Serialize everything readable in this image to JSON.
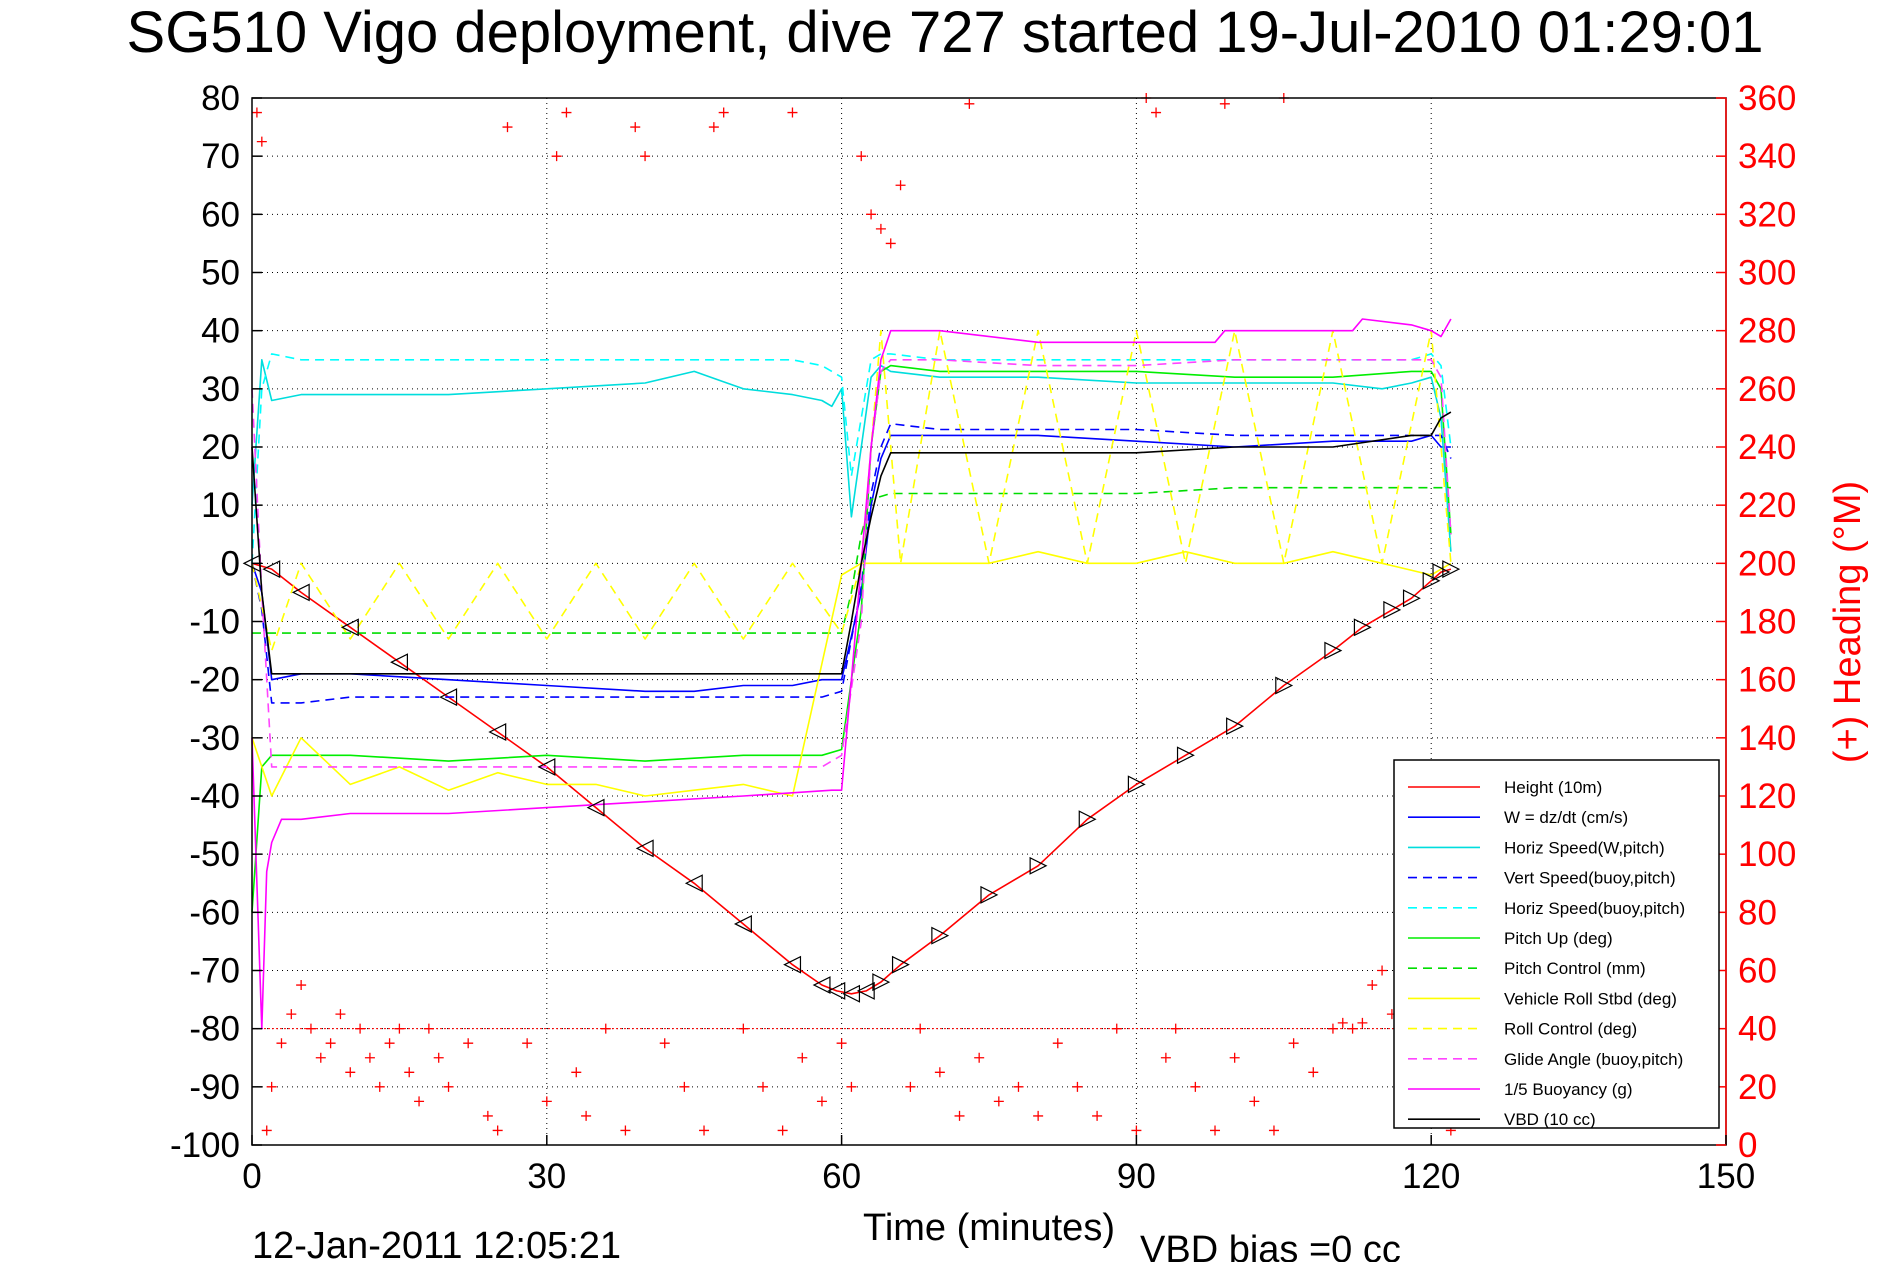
{
  "chart_data": {
    "type": "line",
    "title": "SG510 Vigo deployment, dive 727 started 19-Jul-2010 01:29:01",
    "xlabel": "Time (minutes)",
    "ylabel_right": "(+) Heading (°M)",
    "footer_left": "12-Jan-2011 12:05:21",
    "footer_right": "VBD bias =0 cc",
    "xlim": [
      0,
      150
    ],
    "ylim": [
      -100,
      80
    ],
    "ylim_right": [
      0,
      360
    ],
    "xticks": [
      "0",
      "30",
      "60",
      "90",
      "120",
      "150"
    ],
    "yticks": [
      "80",
      "70",
      "60",
      "50",
      "40",
      "30",
      "20",
      "10",
      "0",
      "-10",
      "-20",
      "-30",
      "-40",
      "-50",
      "-60",
      "-70",
      "-80",
      "-90",
      "-100"
    ],
    "yticks_right": [
      "360",
      "340",
      "320",
      "300",
      "280",
      "260",
      "240",
      "220",
      "200",
      "180",
      "160",
      "140",
      "120",
      "100",
      "80",
      "60",
      "40",
      "20",
      "0"
    ],
    "grid": true,
    "legend_position": "bottom-right",
    "colors": {
      "left_axis": "#000000",
      "right_axis": "#ff0000"
    },
    "series": [
      {
        "name": "Height (10m)",
        "color": "#ff0000",
        "style": "solid",
        "x": [
          0,
          2,
          5,
          10,
          15,
          20,
          25,
          30,
          35,
          40,
          45,
          50,
          55,
          58,
          59.5,
          61,
          62.5,
          64,
          66,
          70,
          75,
          80,
          85,
          90,
          95,
          100,
          105,
          110,
          113,
          116,
          118,
          120,
          121,
          122
        ],
        "y": [
          0,
          -1,
          -5,
          -11,
          -17,
          -23,
          -29,
          -35,
          -42,
          -49,
          -55,
          -62,
          -69,
          -72.5,
          -73.5,
          -74,
          -73.5,
          -72,
          -69,
          -64,
          -57,
          -52,
          -44,
          -38,
          -33,
          -28,
          -21,
          -15,
          -11,
          -8,
          -6,
          -3,
          -1.5,
          -1
        ]
      },
      {
        "name": "W = dz/dt (cm/s)",
        "color": "#0000ff",
        "style": "solid",
        "x": [
          0,
          1,
          2,
          5,
          10,
          20,
          30,
          40,
          45,
          50,
          55,
          58,
          60,
          62,
          63,
          64,
          65,
          70,
          80,
          90,
          100,
          110,
          118,
          120,
          121,
          122
        ],
        "y": [
          0,
          -5,
          -20,
          -19,
          -19,
          -20,
          -21,
          -22,
          -22,
          -21,
          -21,
          -20,
          -20,
          -5,
          10,
          18,
          22,
          22,
          22,
          21,
          20,
          21,
          21,
          22,
          20,
          20
        ]
      },
      {
        "name": "Horiz Speed(W,pitch)",
        "color": "#00dddd",
        "style": "solid",
        "x": [
          0,
          1,
          2,
          5,
          10,
          20,
          30,
          40,
          45,
          50,
          55,
          58,
          59,
          60,
          61,
          62,
          63,
          64,
          65,
          70,
          80,
          90,
          100,
          110,
          115,
          118,
          120,
          121,
          122
        ],
        "y": [
          10,
          35,
          28,
          29,
          29,
          29,
          30,
          31,
          33,
          30,
          29,
          28,
          27,
          30,
          8,
          20,
          32,
          34,
          33,
          32,
          32,
          31,
          31,
          31,
          30,
          31,
          32,
          25,
          2
        ]
      },
      {
        "name": "Vert Speed(buoy,pitch)",
        "color": "#0000ff",
        "style": "dashed",
        "x": [
          0,
          1,
          2,
          5,
          10,
          20,
          30,
          40,
          50,
          55,
          58,
          60,
          62,
          63,
          64,
          65,
          70,
          80,
          90,
          100,
          110,
          118,
          120,
          121,
          122
        ],
        "y": [
          0,
          -8,
          -24,
          -24,
          -23,
          -23,
          -23,
          -23,
          -23,
          -23,
          -23,
          -22,
          -4,
          12,
          20,
          24,
          23,
          23,
          23,
          22,
          22,
          22,
          22,
          22,
          18
        ]
      },
      {
        "name": "Horiz Speed(buoy,pitch)",
        "color": "#00ffff",
        "style": "dashed",
        "x": [
          0,
          1,
          2,
          5,
          10,
          20,
          30,
          40,
          50,
          55,
          58,
          60,
          61,
          62,
          63,
          64,
          65,
          70,
          80,
          90,
          100,
          110,
          118,
          120,
          121,
          122
        ],
        "y": [
          0,
          30,
          36,
          35,
          35,
          35,
          35,
          35,
          35,
          35,
          34,
          32,
          15,
          25,
          35,
          36,
          36,
          35,
          35,
          35,
          35,
          35,
          35,
          36,
          34,
          20
        ]
      },
      {
        "name": "Pitch Up (deg)",
        "color": "#00ee00",
        "style": "solid",
        "x": [
          0,
          1,
          2,
          5,
          10,
          20,
          30,
          40,
          50,
          55,
          58,
          60,
          62,
          63,
          64,
          65,
          70,
          80,
          90,
          100,
          110,
          118,
          120,
          121,
          122
        ],
        "y": [
          -60,
          -35,
          -33,
          -33,
          -33,
          -34,
          -33,
          -34,
          -33,
          -33,
          -33,
          -32,
          -8,
          20,
          33,
          34,
          33,
          33,
          33,
          32,
          32,
          33,
          33,
          30,
          5
        ]
      },
      {
        "name": "Pitch Control (mm)",
        "color": "#00dd00",
        "style": "dashed",
        "x": [
          0,
          2,
          10,
          20,
          30,
          40,
          50,
          60,
          61,
          62,
          63,
          65,
          70,
          80,
          90,
          100,
          110,
          120,
          122
        ],
        "y": [
          -12,
          -12,
          -12,
          -12,
          -12,
          -12,
          -12,
          -12,
          -5,
          5,
          11,
          12,
          12,
          12,
          12,
          13,
          13,
          13,
          13
        ]
      },
      {
        "name": "Vehicle Roll Stbd (deg)",
        "color": "#ffff00",
        "style": "solid",
        "x": [
          0,
          2,
          5,
          10,
          15,
          20,
          25,
          30,
          35,
          40,
          45,
          50,
          55,
          60,
          62,
          64,
          66,
          70,
          75,
          80,
          85,
          90,
          95,
          100,
          105,
          110,
          115,
          120,
          122
        ],
        "y": [
          -30,
          -40,
          -30,
          -38,
          -35,
          -39,
          -36,
          -38,
          -38,
          -40,
          -39,
          -38,
          -40,
          -2,
          0,
          0,
          0,
          0,
          0,
          2,
          0,
          0,
          2,
          0,
          0,
          2,
          0,
          -2,
          0
        ]
      },
      {
        "name": "Roll Control (deg)",
        "color": "#ffff00",
        "style": "dashed",
        "x": [
          0,
          2,
          5,
          10,
          15,
          20,
          25,
          30,
          35,
          40,
          45,
          50,
          55,
          60,
          62,
          64,
          66,
          70,
          75,
          80,
          85,
          90,
          95,
          100,
          105,
          110,
          115,
          120,
          122
        ],
        "y": [
          0,
          -15,
          0,
          -13,
          0,
          -13,
          0,
          -13,
          0,
          -13,
          0,
          -13,
          0,
          -12,
          0,
          40,
          0,
          40,
          0,
          40,
          0,
          40,
          0,
          40,
          0,
          40,
          0,
          40,
          0
        ]
      },
      {
        "name": "Glide Angle (buoy,pitch)",
        "color": "#ff44ff",
        "style": "dashed",
        "x": [
          0,
          1,
          2,
          5,
          10,
          20,
          30,
          40,
          50,
          55,
          58,
          60,
          62,
          63,
          64,
          65,
          70,
          80,
          90,
          100,
          110,
          118,
          120,
          121,
          122
        ],
        "y": [
          30,
          -5,
          -35,
          -35,
          -35,
          -35,
          -35,
          -35,
          -35,
          -35,
          -35,
          -33,
          -10,
          20,
          33,
          35,
          35,
          34,
          34,
          35,
          35,
          35,
          35,
          32,
          5
        ]
      },
      {
        "name": "1/5 Buoyancy (g)",
        "color": "#ff00ff",
        "style": "solid",
        "x": [
          0,
          1,
          1.5,
          2,
          3,
          5,
          10,
          20,
          30,
          40,
          50,
          59,
          60,
          61,
          62,
          63,
          64,
          65,
          70,
          80,
          90,
          98,
          99,
          105,
          112,
          113,
          118,
          120,
          121,
          122
        ],
        "y": [
          -30,
          -80,
          -53,
          -48,
          -44,
          -44,
          -43,
          -43,
          -42,
          -41,
          -40,
          -39,
          -39,
          -20,
          0,
          20,
          35,
          40,
          40,
          38,
          38,
          38,
          40,
          40,
          40,
          42,
          41,
          40,
          39,
          42
        ]
      },
      {
        "name": "VBD (10 cc)",
        "color": "#000000",
        "style": "solid",
        "x": [
          0,
          1,
          2,
          5,
          10,
          20,
          30,
          40,
          50,
          59.5,
          60,
          61,
          62,
          63,
          64,
          65,
          66,
          70,
          80,
          90,
          100,
          110,
          118,
          120,
          121,
          122
        ],
        "y": [
          20,
          -5,
          -19,
          -19,
          -19,
          -19,
          -19,
          -19,
          -19,
          -19,
          -19,
          -10,
          0,
          8,
          15,
          19,
          19,
          19,
          19,
          19,
          20,
          20,
          22,
          22,
          25,
          26
        ]
      }
    ],
    "heading_points": {
      "name": "(+) Heading (°M)",
      "color": "#ff0000",
      "x": [
        0.5,
        1,
        1.5,
        2,
        3,
        4,
        5,
        6,
        7,
        8,
        9,
        10,
        11,
        12,
        13,
        14,
        15,
        16,
        17,
        18,
        19,
        20,
        22,
        24,
        25,
        26,
        28,
        30,
        31,
        32,
        33,
        34,
        36,
        38,
        39,
        40,
        42,
        44,
        46,
        47,
        48,
        50,
        52,
        54,
        55,
        56,
        58,
        60,
        61,
        62,
        63,
        64,
        65,
        66,
        67,
        68,
        70,
        72,
        73,
        74,
        76,
        78,
        80,
        82,
        84,
        86,
        88,
        90,
        91,
        92,
        93,
        94,
        96,
        98,
        99,
        100,
        102,
        104,
        105,
        106,
        108,
        110,
        111,
        112,
        113,
        114,
        115,
        116,
        118,
        120,
        121,
        122
      ],
      "y": [
        355,
        345,
        5,
        20,
        35,
        45,
        55,
        40,
        30,
        35,
        45,
        25,
        40,
        30,
        20,
        35,
        40,
        25,
        15,
        40,
        30,
        20,
        35,
        10,
        5,
        350,
        35,
        15,
        340,
        355,
        25,
        10,
        40,
        5,
        350,
        340,
        35,
        20,
        5,
        350,
        355,
        40,
        20,
        5,
        355,
        30,
        15,
        35,
        20,
        340,
        320,
        315,
        310,
        330,
        20,
        40,
        25,
        10,
        358,
        30,
        15,
        20,
        10,
        35,
        20,
        10,
        40,
        5,
        360,
        355,
        30,
        40,
        20,
        5,
        358,
        30,
        15,
        5,
        360,
        35,
        25,
        40,
        42,
        40,
        42,
        55,
        60,
        45,
        30,
        20,
        10,
        5
      ]
    }
  }
}
